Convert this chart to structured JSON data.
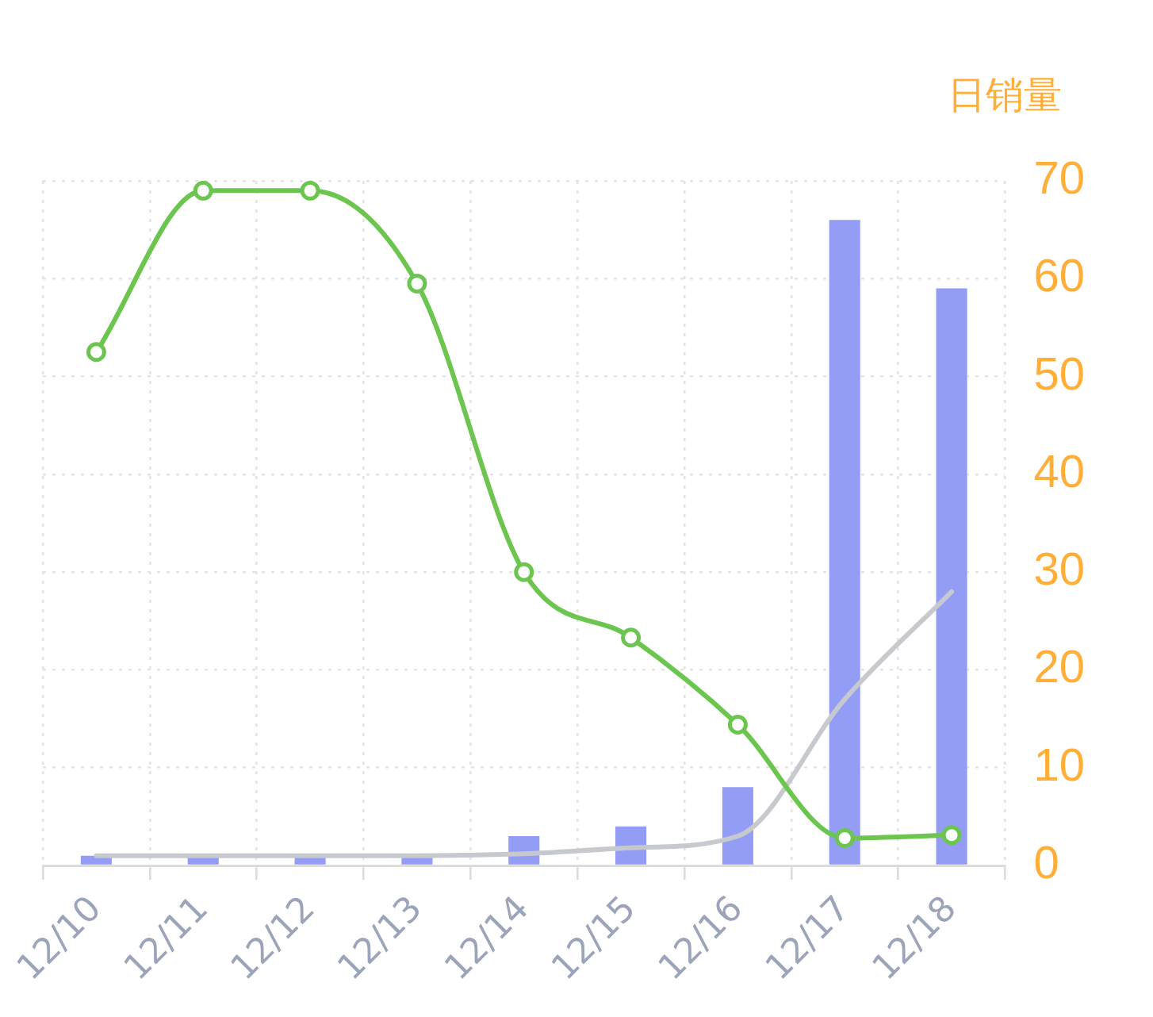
{
  "chart_data": {
    "type": "bar",
    "categories": [
      "12/10",
      "12/11",
      "12/12",
      "12/13",
      "12/14",
      "12/15",
      "12/16",
      "12/17",
      "12/18"
    ],
    "series": [
      {
        "color": "#939df6",
        "values": [
          1,
          1,
          1,
          1,
          3,
          4,
          8,
          66,
          59
        ]
      },
      {
        "type": "line",
        "color": "#c6c9ce",
        "marker": "none",
        "values": [
          1,
          1,
          1,
          1,
          1.2,
          1.8,
          3,
          17,
          28
        ]
      },
      {
        "type": "line",
        "color": "#6cc54f",
        "marker": "circle",
        "values": [
          52.5,
          69,
          69,
          59.5,
          30,
          23.3,
          14.4,
          2.8,
          3.1
        ]
      }
    ],
    "ylabel": "日销量",
    "ylim": [
      0,
      70
    ],
    "yticks": [
      0,
      10,
      20,
      30,
      40,
      50,
      60,
      70
    ],
    "grid": true,
    "legend": false
  }
}
